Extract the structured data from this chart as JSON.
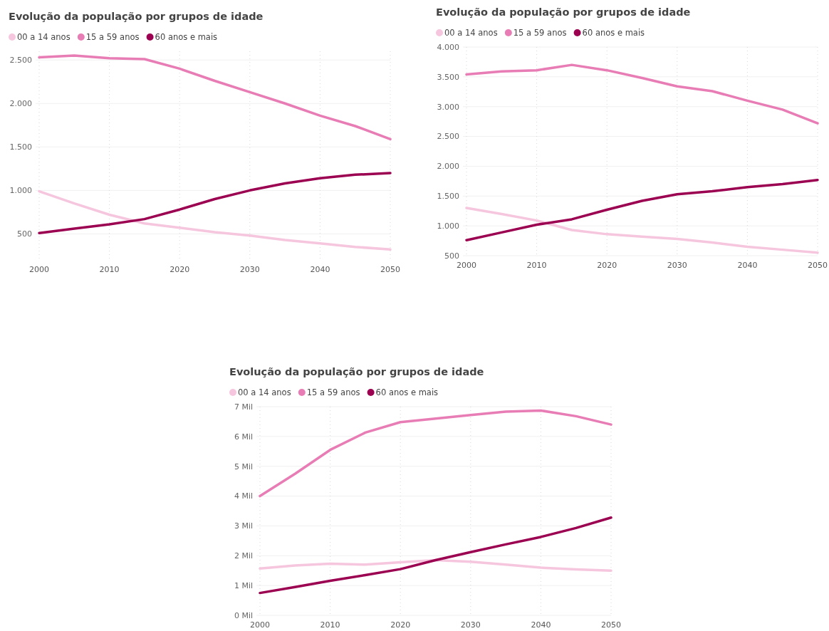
{
  "chart_data": [
    {
      "type": "line",
      "title": "Evolução da população por grupos de idade",
      "x": [
        2000,
        2005,
        2010,
        2015,
        2020,
        2025,
        2030,
        2035,
        2040,
        2045,
        2050
      ],
      "xlim": [
        2000,
        2050
      ],
      "xticks": [
        2000,
        2010,
        2020,
        2030,
        2040,
        2050
      ],
      "ylim": [
        200,
        2600
      ],
      "yticks": [
        500,
        {
          "value": 1000,
          "label": "1.000"
        },
        {
          "value": 1500,
          "label": "1.500"
        },
        {
          "value": 2000,
          "label": "2.000"
        },
        {
          "value": 2500,
          "label": "2.500"
        }
      ],
      "grid": true,
      "legend": "top left",
      "marker": "none",
      "series": [
        {
          "name": "00 a 14 anos",
          "color": "#f5c6de",
          "values": [
            990,
            850,
            720,
            620,
            570,
            520,
            480,
            430,
            390,
            350,
            320
          ]
        },
        {
          "name": "15 a 59 anos",
          "color": "#e87cb5",
          "values": [
            2530,
            2550,
            2520,
            2510,
            2400,
            2260,
            2130,
            2000,
            1860,
            1740,
            1590
          ]
        },
        {
          "name": "60 anos e mais",
          "color": "#9b0051",
          "values": [
            510,
            560,
            610,
            670,
            780,
            900,
            1000,
            1080,
            1140,
            1180,
            1200
          ]
        }
      ]
    },
    {
      "type": "line",
      "title": "Evolução da população por grupos de idade",
      "x": [
        2000,
        2005,
        2010,
        2015,
        2020,
        2025,
        2030,
        2035,
        2040,
        2045,
        2050
      ],
      "xlim": [
        2000,
        2050
      ],
      "xticks": [
        2000,
        2010,
        2020,
        2030,
        2040,
        2050
      ],
      "ylim": [
        500,
        4000
      ],
      "yticks": [
        500,
        {
          "value": 1000,
          "label": "1.000"
        },
        {
          "value": 1500,
          "label": "1.500"
        },
        {
          "value": 2000,
          "label": "2.000"
        },
        {
          "value": 2500,
          "label": "2.500"
        },
        {
          "value": 3000,
          "label": "3.000"
        },
        {
          "value": 3500,
          "label": "3.500"
        },
        {
          "value": 4000,
          "label": "4.000"
        }
      ],
      "grid": true,
      "legend": "top left",
      "marker": "none",
      "series": [
        {
          "name": "00 a 14 anos",
          "color": "#f5c6de",
          "values": [
            1300,
            1200,
            1090,
            930,
            860,
            820,
            780,
            720,
            650,
            600,
            550
          ]
        },
        {
          "name": "15 a 59 anos",
          "color": "#e87cb5",
          "values": [
            3540,
            3590,
            3610,
            3700,
            3610,
            3480,
            3340,
            3260,
            3100,
            2950,
            2720
          ]
        },
        {
          "name": "60 anos e mais",
          "color": "#9b0051",
          "values": [
            760,
            890,
            1020,
            1110,
            1270,
            1420,
            1530,
            1580,
            1650,
            1700,
            1770
          ]
        }
      ]
    },
    {
      "type": "line",
      "title": "Evolução da população por grupos de idade",
      "x": [
        2000,
        2005,
        2010,
        2015,
        2020,
        2025,
        2030,
        2035,
        2040,
        2045,
        2050
      ],
      "xlim": [
        2000,
        2050
      ],
      "xticks": [
        2000,
        2010,
        2020,
        2030,
        2040,
        2050
      ],
      "ylim": [
        0,
        7
      ],
      "yticks": [
        {
          "value": 0,
          "label": "0 Mil"
        },
        {
          "value": 1,
          "label": "1 Mil"
        },
        {
          "value": 2,
          "label": "2 Mil"
        },
        {
          "value": 3,
          "label": "3 Mil"
        },
        {
          "value": 4,
          "label": "4 Mil"
        },
        {
          "value": 5,
          "label": "5 Mil"
        },
        {
          "value": 6,
          "label": "6 Mil"
        },
        {
          "value": 7,
          "label": "7 Mil"
        }
      ],
      "grid": true,
      "legend": "top left",
      "marker": "none",
      "series": [
        {
          "name": "00 a 14 anos",
          "color": "#f5c6de",
          "values": [
            1.57,
            1.67,
            1.73,
            1.7,
            1.78,
            1.85,
            1.8,
            1.7,
            1.6,
            1.54,
            1.5
          ]
        },
        {
          "name": "15 a 59 anos",
          "color": "#e87cb5",
          "values": [
            4.0,
            4.75,
            5.55,
            6.13,
            6.48,
            6.6,
            6.72,
            6.83,
            6.87,
            6.68,
            6.4
          ]
        },
        {
          "name": "60 anos e mais",
          "color": "#9b0051",
          "values": [
            0.75,
            0.95,
            1.16,
            1.35,
            1.55,
            1.85,
            2.12,
            2.38,
            2.63,
            2.93,
            3.28
          ]
        }
      ]
    }
  ]
}
